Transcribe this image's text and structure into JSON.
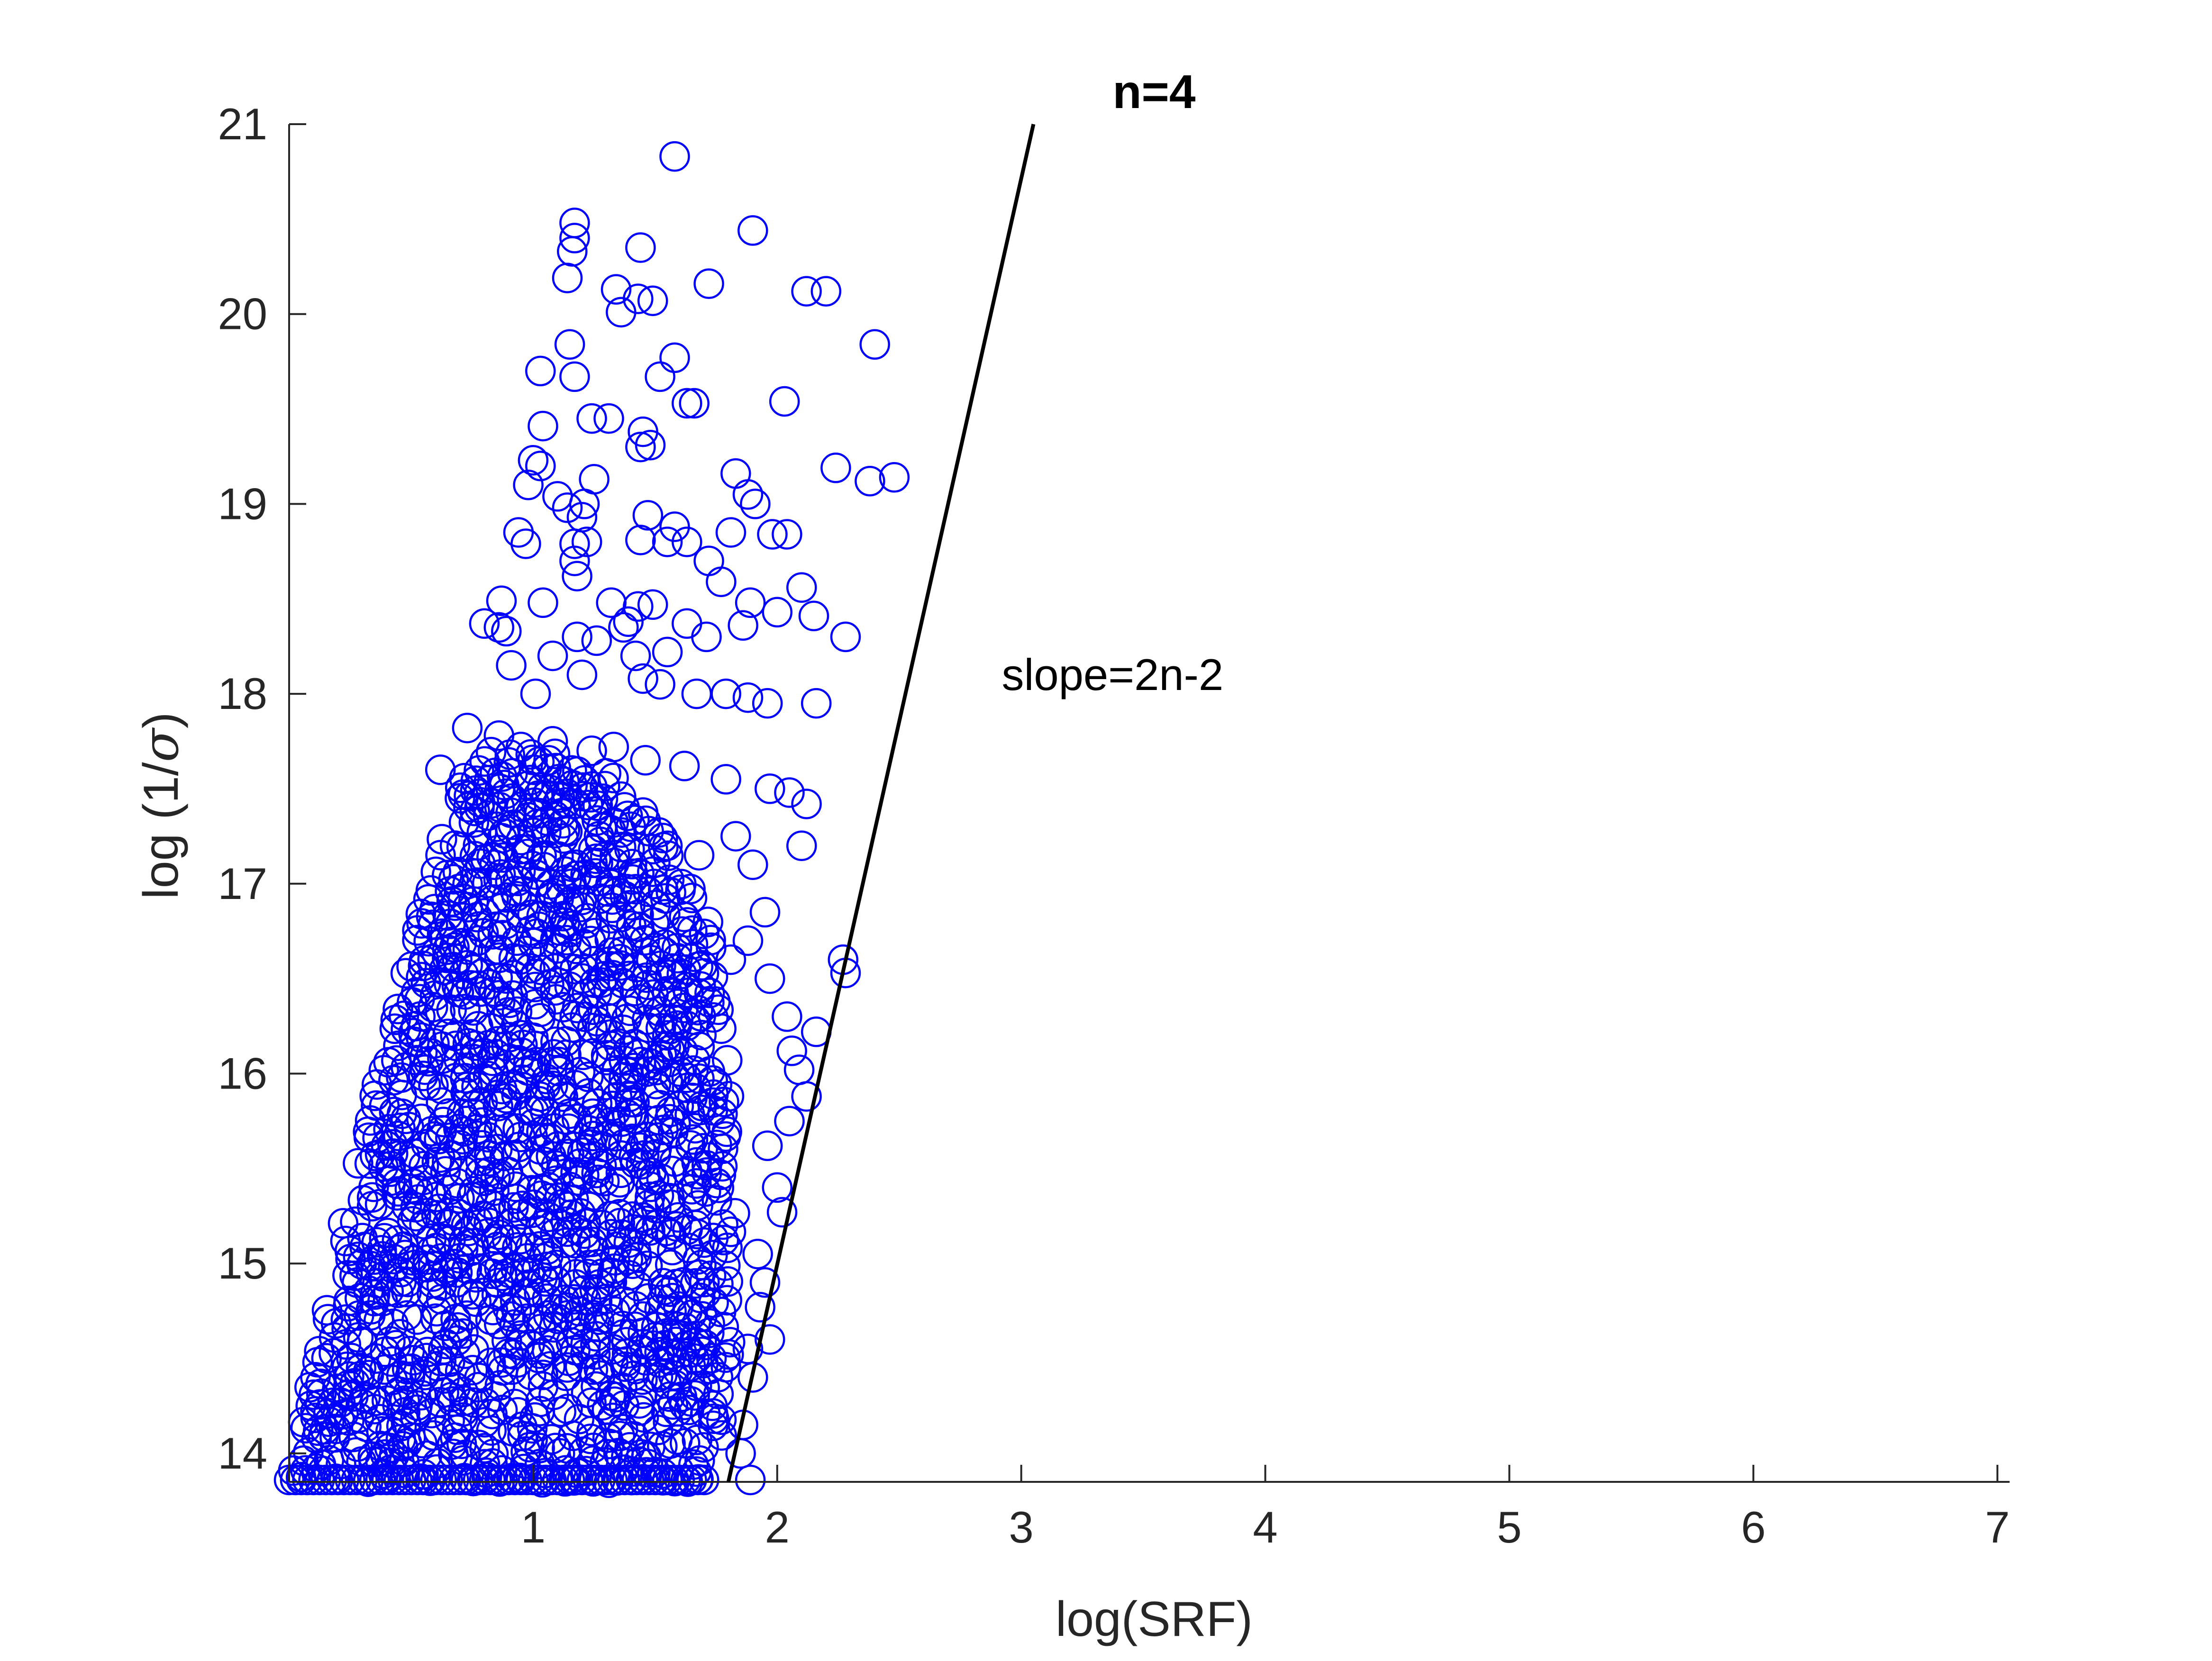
{
  "chart_data": {
    "type": "scatter",
    "title": "n=4",
    "xlabel": "log(SRF)",
    "ylabel_prefix": "log (1/",
    "ylabel_symbol": "σ",
    "ylabel_suffix": ")",
    "xlim": [
      0.0,
      7.05
    ],
    "ylim": [
      13.85,
      21.0
    ],
    "xticks": [
      1,
      2,
      3,
      4,
      5,
      6,
      7
    ],
    "yticks": [
      14,
      15,
      16,
      17,
      18,
      19,
      20,
      21
    ],
    "grid": false,
    "legend": "none",
    "marker_color": "#0000ff",
    "line_color": "#000000",
    "annotation": {
      "text": "slope=2n-2",
      "x": 2.92,
      "y": 18.1
    },
    "fit_line": {
      "x": [
        1.8,
        3.05
      ],
      "y": [
        13.85,
        21.0
      ]
    },
    "points": [
      [
        1.58,
        20.83
      ],
      [
        1.17,
        20.48
      ],
      [
        1.17,
        20.4
      ],
      [
        1.16,
        20.33
      ],
      [
        1.9,
        20.44
      ],
      [
        1.44,
        20.35
      ],
      [
        1.14,
        20.19
      ],
      [
        1.72,
        20.16
      ],
      [
        1.34,
        20.13
      ],
      [
        1.43,
        20.08
      ],
      [
        1.49,
        20.07
      ],
      [
        1.36,
        20.01
      ],
      [
        2.12,
        20.12
      ],
      [
        2.2,
        20.12
      ],
      [
        2.4,
        19.84
      ],
      [
        1.15,
        19.84
      ],
      [
        1.58,
        19.77
      ],
      [
        1.03,
        19.7
      ],
      [
        1.17,
        19.67
      ],
      [
        1.52,
        19.67
      ],
      [
        1.63,
        19.53
      ],
      [
        1.66,
        19.53
      ],
      [
        2.03,
        19.54
      ],
      [
        1.24,
        19.45
      ],
      [
        1.31,
        19.45
      ],
      [
        1.04,
        19.41
      ],
      [
        1.45,
        19.38
      ],
      [
        1.48,
        19.31
      ],
      [
        1.44,
        19.3
      ],
      [
        1.0,
        19.23
      ],
      [
        1.03,
        19.2
      ],
      [
        0.98,
        19.1
      ],
      [
        2.24,
        19.19
      ],
      [
        1.83,
        19.16
      ],
      [
        2.48,
        19.14
      ],
      [
        2.38,
        19.12
      ],
      [
        1.25,
        19.13
      ],
      [
        1.1,
        19.04
      ],
      [
        1.14,
        18.98
      ],
      [
        1.21,
        19.0
      ],
      [
        1.2,
        18.93
      ],
      [
        1.88,
        19.05
      ],
      [
        1.91,
        19.0
      ],
      [
        1.47,
        18.94
      ],
      [
        1.58,
        18.88
      ],
      [
        0.94,
        18.85
      ],
      [
        0.97,
        18.79
      ],
      [
        1.44,
        18.81
      ],
      [
        1.17,
        18.79
      ],
      [
        1.22,
        18.8
      ],
      [
        1.55,
        18.8
      ],
      [
        1.63,
        18.8
      ],
      [
        1.81,
        18.85
      ],
      [
        1.98,
        18.84
      ],
      [
        2.04,
        18.84
      ],
      [
        1.17,
        18.7
      ],
      [
        1.18,
        18.62
      ],
      [
        1.72,
        18.7
      ],
      [
        1.77,
        18.59
      ],
      [
        2.1,
        18.56
      ],
      [
        0.87,
        18.49
      ],
      [
        1.04,
        18.48
      ],
      [
        1.32,
        18.48
      ],
      [
        1.43,
        18.46
      ],
      [
        1.49,
        18.47
      ],
      [
        1.89,
        18.48
      ],
      [
        2.0,
        18.43
      ],
      [
        2.15,
        18.41
      ],
      [
        2.28,
        18.3
      ],
      [
        0.8,
        18.37
      ],
      [
        0.86,
        18.35
      ],
      [
        0.89,
        18.33
      ],
      [
        1.39,
        18.38
      ],
      [
        1.37,
        18.35
      ],
      [
        1.63,
        18.37
      ],
      [
        1.86,
        18.36
      ],
      [
        1.71,
        18.3
      ],
      [
        1.18,
        18.3
      ],
      [
        1.08,
        18.2
      ],
      [
        1.26,
        18.28
      ],
      [
        1.42,
        18.2
      ],
      [
        1.55,
        18.22
      ],
      [
        0.91,
        18.15
      ],
      [
        1.01,
        18.0
      ],
      [
        1.2,
        18.1
      ],
      [
        1.45,
        18.08
      ],
      [
        1.52,
        18.05
      ],
      [
        1.67,
        18.0
      ],
      [
        1.79,
        18.0
      ],
      [
        1.88,
        17.98
      ],
      [
        1.96,
        17.95
      ],
      [
        2.16,
        17.95
      ],
      [
        0.73,
        17.82
      ],
      [
        0.86,
        17.78
      ],
      [
        0.95,
        17.72
      ],
      [
        1.08,
        17.75
      ],
      [
        1.24,
        17.7
      ],
      [
        1.33,
        17.72
      ],
      [
        1.46,
        17.65
      ],
      [
        1.62,
        17.62
      ],
      [
        1.79,
        17.55
      ],
      [
        1.97,
        17.5
      ],
      [
        2.05,
        17.48
      ],
      [
        2.12,
        17.42
      ],
      [
        0.62,
        17.6
      ],
      [
        0.7,
        17.45
      ],
      [
        0.78,
        17.4
      ],
      [
        0.85,
        17.3
      ],
      [
        0.98,
        17.35
      ],
      [
        1.13,
        17.28
      ],
      [
        1.27,
        17.25
      ],
      [
        1.4,
        17.3
      ],
      [
        1.55,
        17.2
      ],
      [
        1.68,
        17.15
      ],
      [
        1.83,
        17.25
      ],
      [
        1.9,
        17.1
      ],
      [
        2.1,
        17.2
      ],
      [
        1.95,
        16.85
      ],
      [
        1.88,
        16.7
      ],
      [
        2.27,
        16.6
      ],
      [
        2.28,
        16.53
      ],
      [
        1.81,
        16.6
      ],
      [
        1.97,
        16.5
      ],
      [
        2.04,
        16.3
      ],
      [
        2.16,
        16.22
      ],
      [
        2.06,
        16.12
      ],
      [
        2.09,
        16.02
      ],
      [
        2.12,
        15.88
      ],
      [
        2.05,
        15.75
      ],
      [
        1.96,
        15.62
      ],
      [
        2.0,
        15.4
      ],
      [
        2.02,
        15.27
      ],
      [
        1.92,
        15.05
      ],
      [
        1.95,
        14.9
      ],
      [
        1.93,
        14.77
      ],
      [
        1.97,
        14.6
      ],
      [
        1.88,
        14.55
      ],
      [
        1.9,
        14.4
      ],
      [
        1.86,
        14.15
      ],
      [
        1.85,
        14.0
      ],
      [
        1.89,
        13.86
      ]
    ],
    "envelope_left": [
      [
        0.0,
        13.86
      ],
      [
        0.04,
        14.0
      ],
      [
        0.12,
        14.5
      ],
      [
        0.2,
        15.0
      ],
      [
        0.28,
        15.5
      ],
      [
        0.38,
        16.0
      ],
      [
        0.48,
        16.5
      ],
      [
        0.58,
        17.0
      ],
      [
        0.68,
        17.4
      ],
      [
        0.78,
        17.7
      ]
    ],
    "envelope_right": [
      [
        0.78,
        17.7
      ],
      [
        1.0,
        17.8
      ],
      [
        1.3,
        17.6
      ],
      [
        1.6,
        17.2
      ],
      [
        1.75,
        16.7
      ],
      [
        1.8,
        16.0
      ],
      [
        1.82,
        15.3
      ],
      [
        1.8,
        14.6
      ],
      [
        1.78,
        14.1
      ],
      [
        1.7,
        13.86
      ]
    ]
  }
}
